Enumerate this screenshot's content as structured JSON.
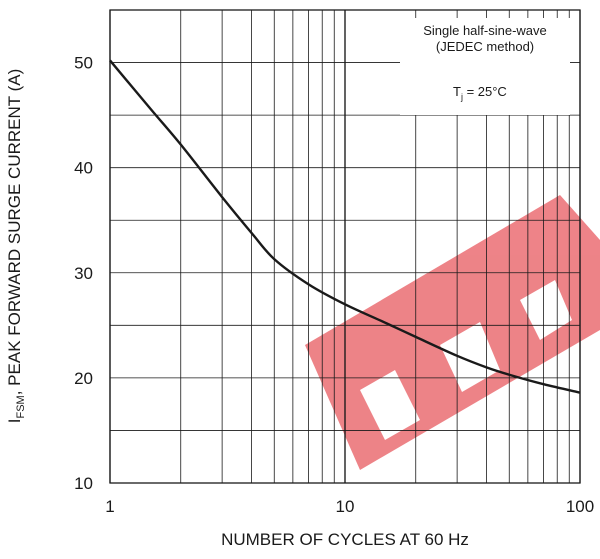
{
  "chart_data": {
    "type": "line",
    "x_scale": "log",
    "x": [
      1,
      1.5,
      2,
      3,
      4,
      5,
      7,
      10,
      15,
      20,
      30,
      40,
      50,
      70,
      100
    ],
    "series": [
      {
        "values": [
          50.2,
          45.5,
          42.2,
          37.2,
          33.8,
          31.3,
          28.9,
          27.0,
          25.2,
          23.9,
          22.1,
          21.0,
          20.3,
          19.4,
          18.6
        ]
      }
    ],
    "xlim": [
      1,
      100
    ],
    "ylim": [
      10,
      55
    ],
    "x_ticks": [
      1,
      10,
      100
    ],
    "x_tick_labels": [
      "1",
      "10",
      "100"
    ],
    "y_ticks": [
      10,
      20,
      30,
      40,
      50
    ],
    "y_tick_labels": [
      "10",
      "20",
      "30",
      "40",
      "50"
    ],
    "xlabel": "NUMBER OF CYCLES AT 60 Hz",
    "ylabel": {
      "symbol": "I",
      "subscript": "FSM",
      "text": ", PEAK FORWARD SURGE CURRENT (A)"
    },
    "annotations": {
      "line1": "Single half-sine-wave",
      "line2": "(JEDEC method)",
      "temp_symbol": "T",
      "temp_subscript": "j",
      "temp_value": " = 25°C"
    },
    "grid": true,
    "colors": {
      "line": "#1a1a1a",
      "grid": "#1a1a1a",
      "watermark": "#e85a60"
    }
  }
}
